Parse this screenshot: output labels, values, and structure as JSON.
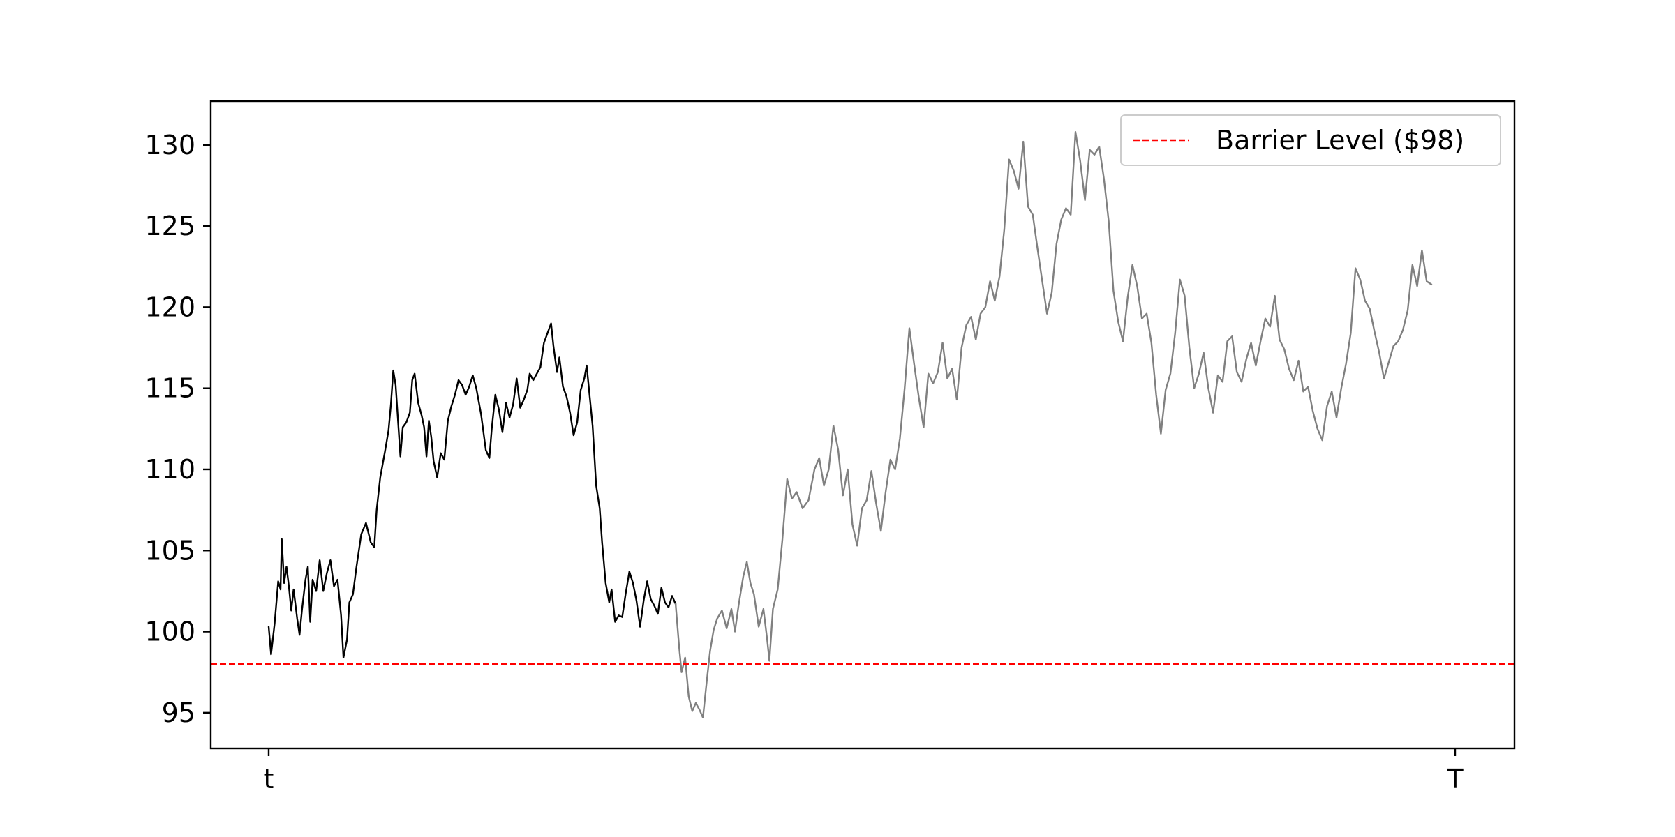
{
  "chart_data": {
    "type": "line",
    "title": "",
    "xlabel": "",
    "ylabel": "",
    "x_ticks": [
      {
        "label": "t",
        "x": 0
      },
      {
        "label": "T",
        "x": 1
      }
    ],
    "xlim": [
      -0.05,
      1.05
    ],
    "ylim": [
      92.8,
      132.7
    ],
    "y_ticks": [
      95,
      100,
      105,
      110,
      115,
      120,
      125,
      130
    ],
    "grid": false,
    "legend": {
      "position": "top-right",
      "entries": [
        "Barrier Level ($98)"
      ]
    },
    "barrier": {
      "name": "Barrier Level ($98)",
      "value": 98,
      "color": "#ff0000",
      "style": "dashed"
    },
    "series": [
      {
        "role": "observed",
        "color": "#000000",
        "points": [
          [
            0.0,
            100.3
          ],
          [
            0.002,
            98.6
          ],
          [
            0.005,
            100.5
          ],
          [
            0.008,
            103.1
          ],
          [
            0.01,
            102.6
          ],
          [
            0.011,
            105.7
          ],
          [
            0.013,
            103.0
          ],
          [
            0.015,
            104.0
          ],
          [
            0.017,
            102.8
          ],
          [
            0.019,
            101.3
          ],
          [
            0.021,
            102.6
          ],
          [
            0.024,
            100.8
          ],
          [
            0.026,
            99.8
          ],
          [
            0.028,
            101.3
          ],
          [
            0.031,
            103.2
          ],
          [
            0.033,
            104.0
          ],
          [
            0.035,
            100.6
          ],
          [
            0.037,
            103.2
          ],
          [
            0.04,
            102.5
          ],
          [
            0.043,
            104.4
          ],
          [
            0.046,
            102.5
          ],
          [
            0.049,
            103.6
          ],
          [
            0.052,
            104.4
          ],
          [
            0.055,
            102.8
          ],
          [
            0.058,
            103.2
          ],
          [
            0.061,
            101.0
          ],
          [
            0.063,
            98.4
          ],
          [
            0.066,
            99.5
          ],
          [
            0.068,
            101.8
          ],
          [
            0.071,
            102.3
          ],
          [
            0.074,
            104.0
          ],
          [
            0.078,
            106.0
          ],
          [
            0.082,
            106.7
          ],
          [
            0.086,
            105.5
          ],
          [
            0.089,
            105.2
          ],
          [
            0.091,
            107.5
          ],
          [
            0.094,
            109.5
          ],
          [
            0.098,
            111.1
          ],
          [
            0.101,
            112.4
          ],
          [
            0.103,
            114.0
          ],
          [
            0.105,
            116.1
          ],
          [
            0.107,
            115.2
          ],
          [
            0.109,
            113.0
          ],
          [
            0.111,
            110.8
          ],
          [
            0.113,
            112.6
          ],
          [
            0.116,
            112.9
          ],
          [
            0.119,
            113.5
          ],
          [
            0.121,
            115.5
          ],
          [
            0.123,
            115.9
          ],
          [
            0.126,
            114.1
          ],
          [
            0.129,
            113.3
          ],
          [
            0.131,
            112.6
          ],
          [
            0.133,
            110.8
          ],
          [
            0.135,
            113.0
          ],
          [
            0.137,
            112.0
          ],
          [
            0.139,
            110.5
          ],
          [
            0.142,
            109.5
          ],
          [
            0.145,
            111.0
          ],
          [
            0.148,
            110.6
          ],
          [
            0.151,
            113.0
          ],
          [
            0.154,
            113.9
          ],
          [
            0.157,
            114.6
          ],
          [
            0.16,
            115.5
          ],
          [
            0.163,
            115.2
          ],
          [
            0.166,
            114.6
          ],
          [
            0.169,
            115.1
          ],
          [
            0.172,
            115.8
          ],
          [
            0.175,
            115.0
          ],
          [
            0.177,
            114.2
          ],
          [
            0.179,
            113.4
          ],
          [
            0.181,
            112.3
          ],
          [
            0.183,
            111.2
          ],
          [
            0.186,
            110.7
          ],
          [
            0.188,
            112.5
          ],
          [
            0.191,
            114.6
          ],
          [
            0.194,
            113.7
          ],
          [
            0.197,
            112.3
          ],
          [
            0.2,
            114.1
          ],
          [
            0.203,
            113.2
          ],
          [
            0.206,
            114.0
          ],
          [
            0.209,
            115.6
          ],
          [
            0.212,
            113.8
          ],
          [
            0.215,
            114.3
          ],
          [
            0.218,
            114.9
          ],
          [
            0.22,
            115.9
          ],
          [
            0.223,
            115.5
          ],
          [
            0.226,
            115.9
          ],
          [
            0.229,
            116.3
          ],
          [
            0.232,
            117.8
          ],
          [
            0.235,
            118.4
          ],
          [
            0.238,
            119.0
          ],
          [
            0.24,
            117.6
          ],
          [
            0.243,
            116.0
          ],
          [
            0.245,
            116.9
          ],
          [
            0.248,
            115.1
          ],
          [
            0.251,
            114.5
          ],
          [
            0.254,
            113.5
          ],
          [
            0.257,
            112.1
          ],
          [
            0.26,
            112.9
          ],
          [
            0.263,
            114.9
          ],
          [
            0.266,
            115.6
          ],
          [
            0.268,
            116.4
          ],
          [
            0.27,
            114.9
          ],
          [
            0.273,
            112.7
          ],
          [
            0.276,
            109.0
          ],
          [
            0.279,
            107.6
          ],
          [
            0.281,
            105.5
          ],
          [
            0.284,
            103.0
          ],
          [
            0.287,
            101.8
          ],
          [
            0.289,
            102.6
          ],
          [
            0.292,
            100.6
          ],
          [
            0.295,
            101.0
          ],
          [
            0.298,
            100.9
          ],
          [
            0.301,
            102.4
          ],
          [
            0.304,
            103.7
          ],
          [
            0.307,
            103.0
          ],
          [
            0.31,
            101.9
          ],
          [
            0.313,
            100.3
          ],
          [
            0.316,
            101.9
          ],
          [
            0.319,
            103.1
          ],
          [
            0.322,
            102.0
          ],
          [
            0.325,
            101.6
          ],
          [
            0.328,
            101.1
          ],
          [
            0.331,
            102.7
          ],
          [
            0.334,
            101.8
          ],
          [
            0.337,
            101.5
          ],
          [
            0.34,
            102.2
          ],
          [
            0.343,
            101.7
          ]
        ]
      },
      {
        "role": "simulated",
        "color": "#808080",
        "points": [
          [
            0.343,
            101.7
          ],
          [
            0.346,
            99.0
          ],
          [
            0.348,
            97.5
          ],
          [
            0.351,
            98.4
          ],
          [
            0.354,
            96.0
          ],
          [
            0.357,
            95.1
          ],
          [
            0.36,
            95.6
          ],
          [
            0.363,
            95.2
          ],
          [
            0.366,
            94.7
          ],
          [
            0.369,
            96.8
          ],
          [
            0.372,
            98.8
          ],
          [
            0.375,
            100.1
          ],
          [
            0.378,
            100.8
          ],
          [
            0.382,
            101.3
          ],
          [
            0.386,
            100.2
          ],
          [
            0.39,
            101.4
          ],
          [
            0.393,
            100.0
          ],
          [
            0.396,
            101.6
          ],
          [
            0.4,
            103.4
          ],
          [
            0.403,
            104.3
          ],
          [
            0.406,
            103.0
          ],
          [
            0.409,
            102.3
          ],
          [
            0.413,
            100.3
          ],
          [
            0.417,
            101.4
          ],
          [
            0.42,
            99.6
          ],
          [
            0.422,
            98.2
          ],
          [
            0.425,
            101.4
          ],
          [
            0.429,
            102.6
          ],
          [
            0.433,
            105.7
          ],
          [
            0.437,
            109.4
          ],
          [
            0.441,
            108.2
          ],
          [
            0.445,
            108.6
          ],
          [
            0.45,
            107.6
          ],
          [
            0.455,
            108.1
          ],
          [
            0.46,
            110.0
          ],
          [
            0.464,
            110.7
          ],
          [
            0.468,
            109.0
          ],
          [
            0.472,
            110.0
          ],
          [
            0.476,
            112.7
          ],
          [
            0.48,
            111.2
          ],
          [
            0.484,
            108.4
          ],
          [
            0.488,
            110.0
          ],
          [
            0.492,
            106.6
          ],
          [
            0.496,
            105.3
          ],
          [
            0.5,
            107.6
          ],
          [
            0.504,
            108.1
          ],
          [
            0.508,
            109.9
          ],
          [
            0.512,
            107.9
          ],
          [
            0.516,
            106.2
          ],
          [
            0.52,
            108.6
          ],
          [
            0.524,
            110.6
          ],
          [
            0.528,
            110.0
          ],
          [
            0.532,
            111.9
          ],
          [
            0.536,
            115.0
          ],
          [
            0.54,
            118.7
          ],
          [
            0.544,
            116.5
          ],
          [
            0.548,
            114.4
          ],
          [
            0.552,
            112.6
          ],
          [
            0.556,
            115.9
          ],
          [
            0.56,
            115.3
          ],
          [
            0.564,
            116.0
          ],
          [
            0.568,
            117.8
          ],
          [
            0.572,
            115.6
          ],
          [
            0.576,
            116.2
          ],
          [
            0.58,
            114.3
          ],
          [
            0.584,
            117.5
          ],
          [
            0.588,
            118.9
          ],
          [
            0.592,
            119.4
          ],
          [
            0.596,
            118.0
          ],
          [
            0.6,
            119.6
          ],
          [
            0.604,
            120.0
          ],
          [
            0.608,
            121.6
          ],
          [
            0.612,
            120.4
          ],
          [
            0.616,
            121.9
          ],
          [
            0.62,
            124.8
          ],
          [
            0.624,
            129.1
          ],
          [
            0.628,
            128.4
          ],
          [
            0.632,
            127.3
          ],
          [
            0.636,
            130.2
          ],
          [
            0.64,
            126.2
          ],
          [
            0.644,
            125.7
          ],
          [
            0.648,
            123.6
          ],
          [
            0.652,
            121.6
          ],
          [
            0.656,
            119.6
          ],
          [
            0.66,
            120.9
          ],
          [
            0.664,
            123.9
          ],
          [
            0.668,
            125.4
          ],
          [
            0.672,
            126.1
          ],
          [
            0.676,
            125.7
          ],
          [
            0.68,
            130.8
          ],
          [
            0.684,
            129.0
          ],
          [
            0.688,
            126.6
          ],
          [
            0.692,
            129.7
          ],
          [
            0.696,
            129.4
          ],
          [
            0.7,
            129.9
          ],
          [
            0.704,
            127.9
          ],
          [
            0.708,
            125.3
          ],
          [
            0.712,
            121.0
          ],
          [
            0.716,
            119.1
          ],
          [
            0.72,
            117.9
          ],
          [
            0.724,
            120.6
          ],
          [
            0.728,
            122.6
          ],
          [
            0.732,
            121.3
          ],
          [
            0.736,
            119.3
          ],
          [
            0.74,
            119.6
          ],
          [
            0.744,
            117.8
          ],
          [
            0.748,
            114.6
          ],
          [
            0.752,
            112.2
          ],
          [
            0.756,
            114.9
          ],
          [
            0.76,
            115.9
          ],
          [
            0.764,
            118.4
          ],
          [
            0.768,
            121.7
          ],
          [
            0.772,
            120.7
          ],
          [
            0.776,
            117.5
          ],
          [
            0.78,
            115.0
          ],
          [
            0.784,
            115.9
          ],
          [
            0.788,
            117.2
          ],
          [
            0.792,
            115.0
          ],
          [
            0.796,
            113.5
          ],
          [
            0.8,
            115.8
          ],
          [
            0.804,
            115.4
          ],
          [
            0.808,
            117.9
          ],
          [
            0.812,
            118.2
          ],
          [
            0.816,
            116.0
          ],
          [
            0.82,
            115.4
          ],
          [
            0.824,
            116.8
          ],
          [
            0.828,
            117.8
          ],
          [
            0.832,
            116.4
          ],
          [
            0.836,
            117.9
          ],
          [
            0.84,
            119.3
          ],
          [
            0.844,
            118.8
          ],
          [
            0.848,
            120.7
          ],
          [
            0.852,
            118.0
          ],
          [
            0.856,
            117.4
          ],
          [
            0.86,
            116.2
          ],
          [
            0.864,
            115.5
          ],
          [
            0.868,
            116.7
          ],
          [
            0.872,
            114.8
          ],
          [
            0.876,
            115.1
          ],
          [
            0.88,
            113.6
          ],
          [
            0.884,
            112.5
          ],
          [
            0.888,
            111.8
          ],
          [
            0.892,
            113.9
          ],
          [
            0.896,
            114.8
          ],
          [
            0.9,
            113.2
          ],
          [
            0.904,
            115.0
          ],
          [
            0.908,
            116.5
          ],
          [
            0.912,
            118.4
          ],
          [
            0.916,
            122.4
          ],
          [
            0.92,
            121.7
          ],
          [
            0.924,
            120.4
          ],
          [
            0.928,
            119.9
          ],
          [
            0.932,
            118.5
          ],
          [
            0.936,
            117.2
          ],
          [
            0.94,
            115.6
          ],
          [
            0.944,
            116.6
          ],
          [
            0.948,
            117.6
          ],
          [
            0.952,
            117.9
          ],
          [
            0.956,
            118.6
          ],
          [
            0.96,
            119.8
          ],
          [
            0.964,
            122.6
          ],
          [
            0.968,
            121.3
          ],
          [
            0.972,
            123.5
          ],
          [
            0.976,
            121.6
          ],
          [
            0.98,
            121.4
          ]
        ]
      }
    ]
  }
}
